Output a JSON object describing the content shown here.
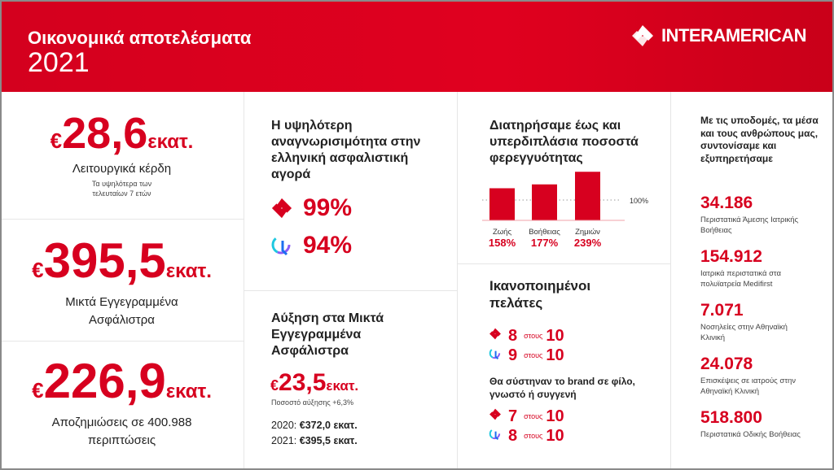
{
  "header": {
    "title": "Οικονομικά αποτελέσματα",
    "year": "2021",
    "brand": "INTERAMERICAN"
  },
  "colors": {
    "accent": "#d7001f"
  },
  "kpis": [
    {
      "currency": "€",
      "value": "28,6",
      "unit": "εκατ.",
      "label": "Λειτουργικά κέρδη",
      "note": "Τα υψηλότερα των τελευταίων 7 ετών"
    },
    {
      "currency": "€",
      "value": "395,5",
      "unit": "εκατ.",
      "label": "Μικτά Εγγεγραμμένα Ασφάλιστρα"
    },
    {
      "currency": "€",
      "value": "226,9",
      "unit": "εκατ.",
      "label": "Αποζημιώσεις σε 400.988 περιπτώσεις"
    }
  ],
  "recognition": {
    "heading": "Η υψηλότερη αναγνωρισιμότητα στην ελληνική ασφαλιστική αγορά",
    "items": [
      {
        "icon": "interamerican-logo-icon",
        "value": "99%"
      },
      {
        "icon": "anytime-logo-icon",
        "value": "94%"
      }
    ]
  },
  "growth": {
    "heading": "Αύξηση στα Μικτά Εγγεγραμμένα Ασφάλιστρα",
    "currency": "€",
    "value": "23,5",
    "unit": "εκατ.",
    "rate": "Ποσοστό αύξησης +6,3%",
    "y2020_label": "2020:",
    "y2020_value": "€372,0 εκατ.",
    "y2021_label": "2021:",
    "y2021_value": "€395,5 εκατ."
  },
  "chart_data": {
    "type": "bar",
    "title": "Διατηρήσαμε έως και υπερδιπλάσια ποσοστά φερεγγυότητας",
    "categories": [
      "Ζωής",
      "Βοήθειας",
      "Ζημιών"
    ],
    "values": [
      158,
      177,
      239
    ],
    "value_labels": [
      "158%",
      "177%",
      "239%"
    ],
    "reference_line": {
      "value": 100,
      "label": "100%"
    },
    "ylim": [
      0,
      260
    ]
  },
  "satisfaction": {
    "heading": "Ικανοποιημένοι πελάτες",
    "items": [
      {
        "icon": "interamerican-logo-icon",
        "score": "8",
        "of": "στους",
        "max": "10"
      },
      {
        "icon": "anytime-logo-icon",
        "score": "9",
        "of": "στους",
        "max": "10"
      }
    ],
    "recommend_heading": "Θα σύστηναν το brand σε φίλο, γνωστό ή συγγενή",
    "recommend": [
      {
        "icon": "interamerican-logo-icon",
        "score": "7",
        "of": "στους",
        "max": "10"
      },
      {
        "icon": "anytime-logo-icon",
        "score": "8",
        "of": "στους",
        "max": "10"
      }
    ]
  },
  "services": {
    "heading": "Με τις υποδομές, τα μέσα και τους ανθρώπους μας, συντονίσαμε και εξυπηρετήσαμε",
    "items": [
      {
        "value": "34.186",
        "label": "Περιστατικά Άμεσης Ιατρικής Βοήθειας"
      },
      {
        "value": "154.912",
        "label": "Ιατρικά περιστατικά στα πολυϊατρεία Medifirst"
      },
      {
        "value": "7.071",
        "label": "Νοσηλείες στην Αθηναϊκή Κλινική"
      },
      {
        "value": "24.078",
        "label": "Επισκέψεις σε ιατρούς στην Αθηναϊκή Κλινική"
      },
      {
        "value": "518.800",
        "label": "Περιστατικά Οδικής Βοήθειας"
      }
    ]
  }
}
